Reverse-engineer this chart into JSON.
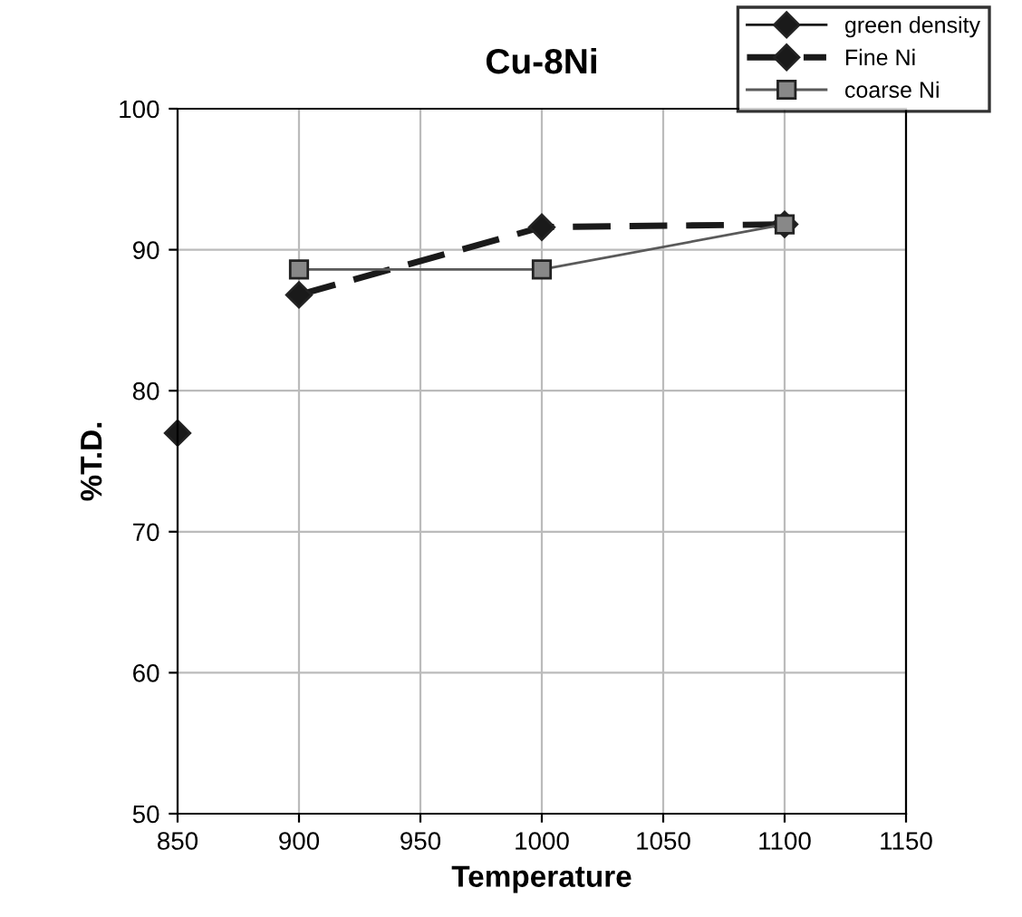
{
  "chart_data": {
    "type": "line",
    "title": "Cu-8Ni",
    "xlabel": "Temperature",
    "ylabel": "%T.D.",
    "series": [
      {
        "name": "green density",
        "color": "#1a1a1a",
        "marker": "diamond",
        "line_style": "solid",
        "x": [
          850
        ],
        "values": [
          77.0
        ]
      },
      {
        "name": "Fine Ni",
        "color": "#1a1a1a",
        "marker": "diamond",
        "line_style": "dashed",
        "x": [
          900,
          1000,
          1100
        ],
        "values": [
          86.8,
          91.6,
          91.8
        ]
      },
      {
        "name": "coarse Ni",
        "color": "#5a5a5a",
        "marker": "square",
        "line_style": "solid",
        "x": [
          900,
          1000,
          1100
        ],
        "values": [
          88.6,
          88.6,
          91.8
        ]
      }
    ],
    "xlim": [
      850,
      1150
    ],
    "xticks": [
      850,
      900,
      950,
      1000,
      1050,
      1100,
      1150
    ],
    "ylim": [
      50,
      100
    ],
    "yticks": [
      50,
      60,
      70,
      80,
      90,
      100
    ],
    "grid": true,
    "legend": "top right"
  }
}
